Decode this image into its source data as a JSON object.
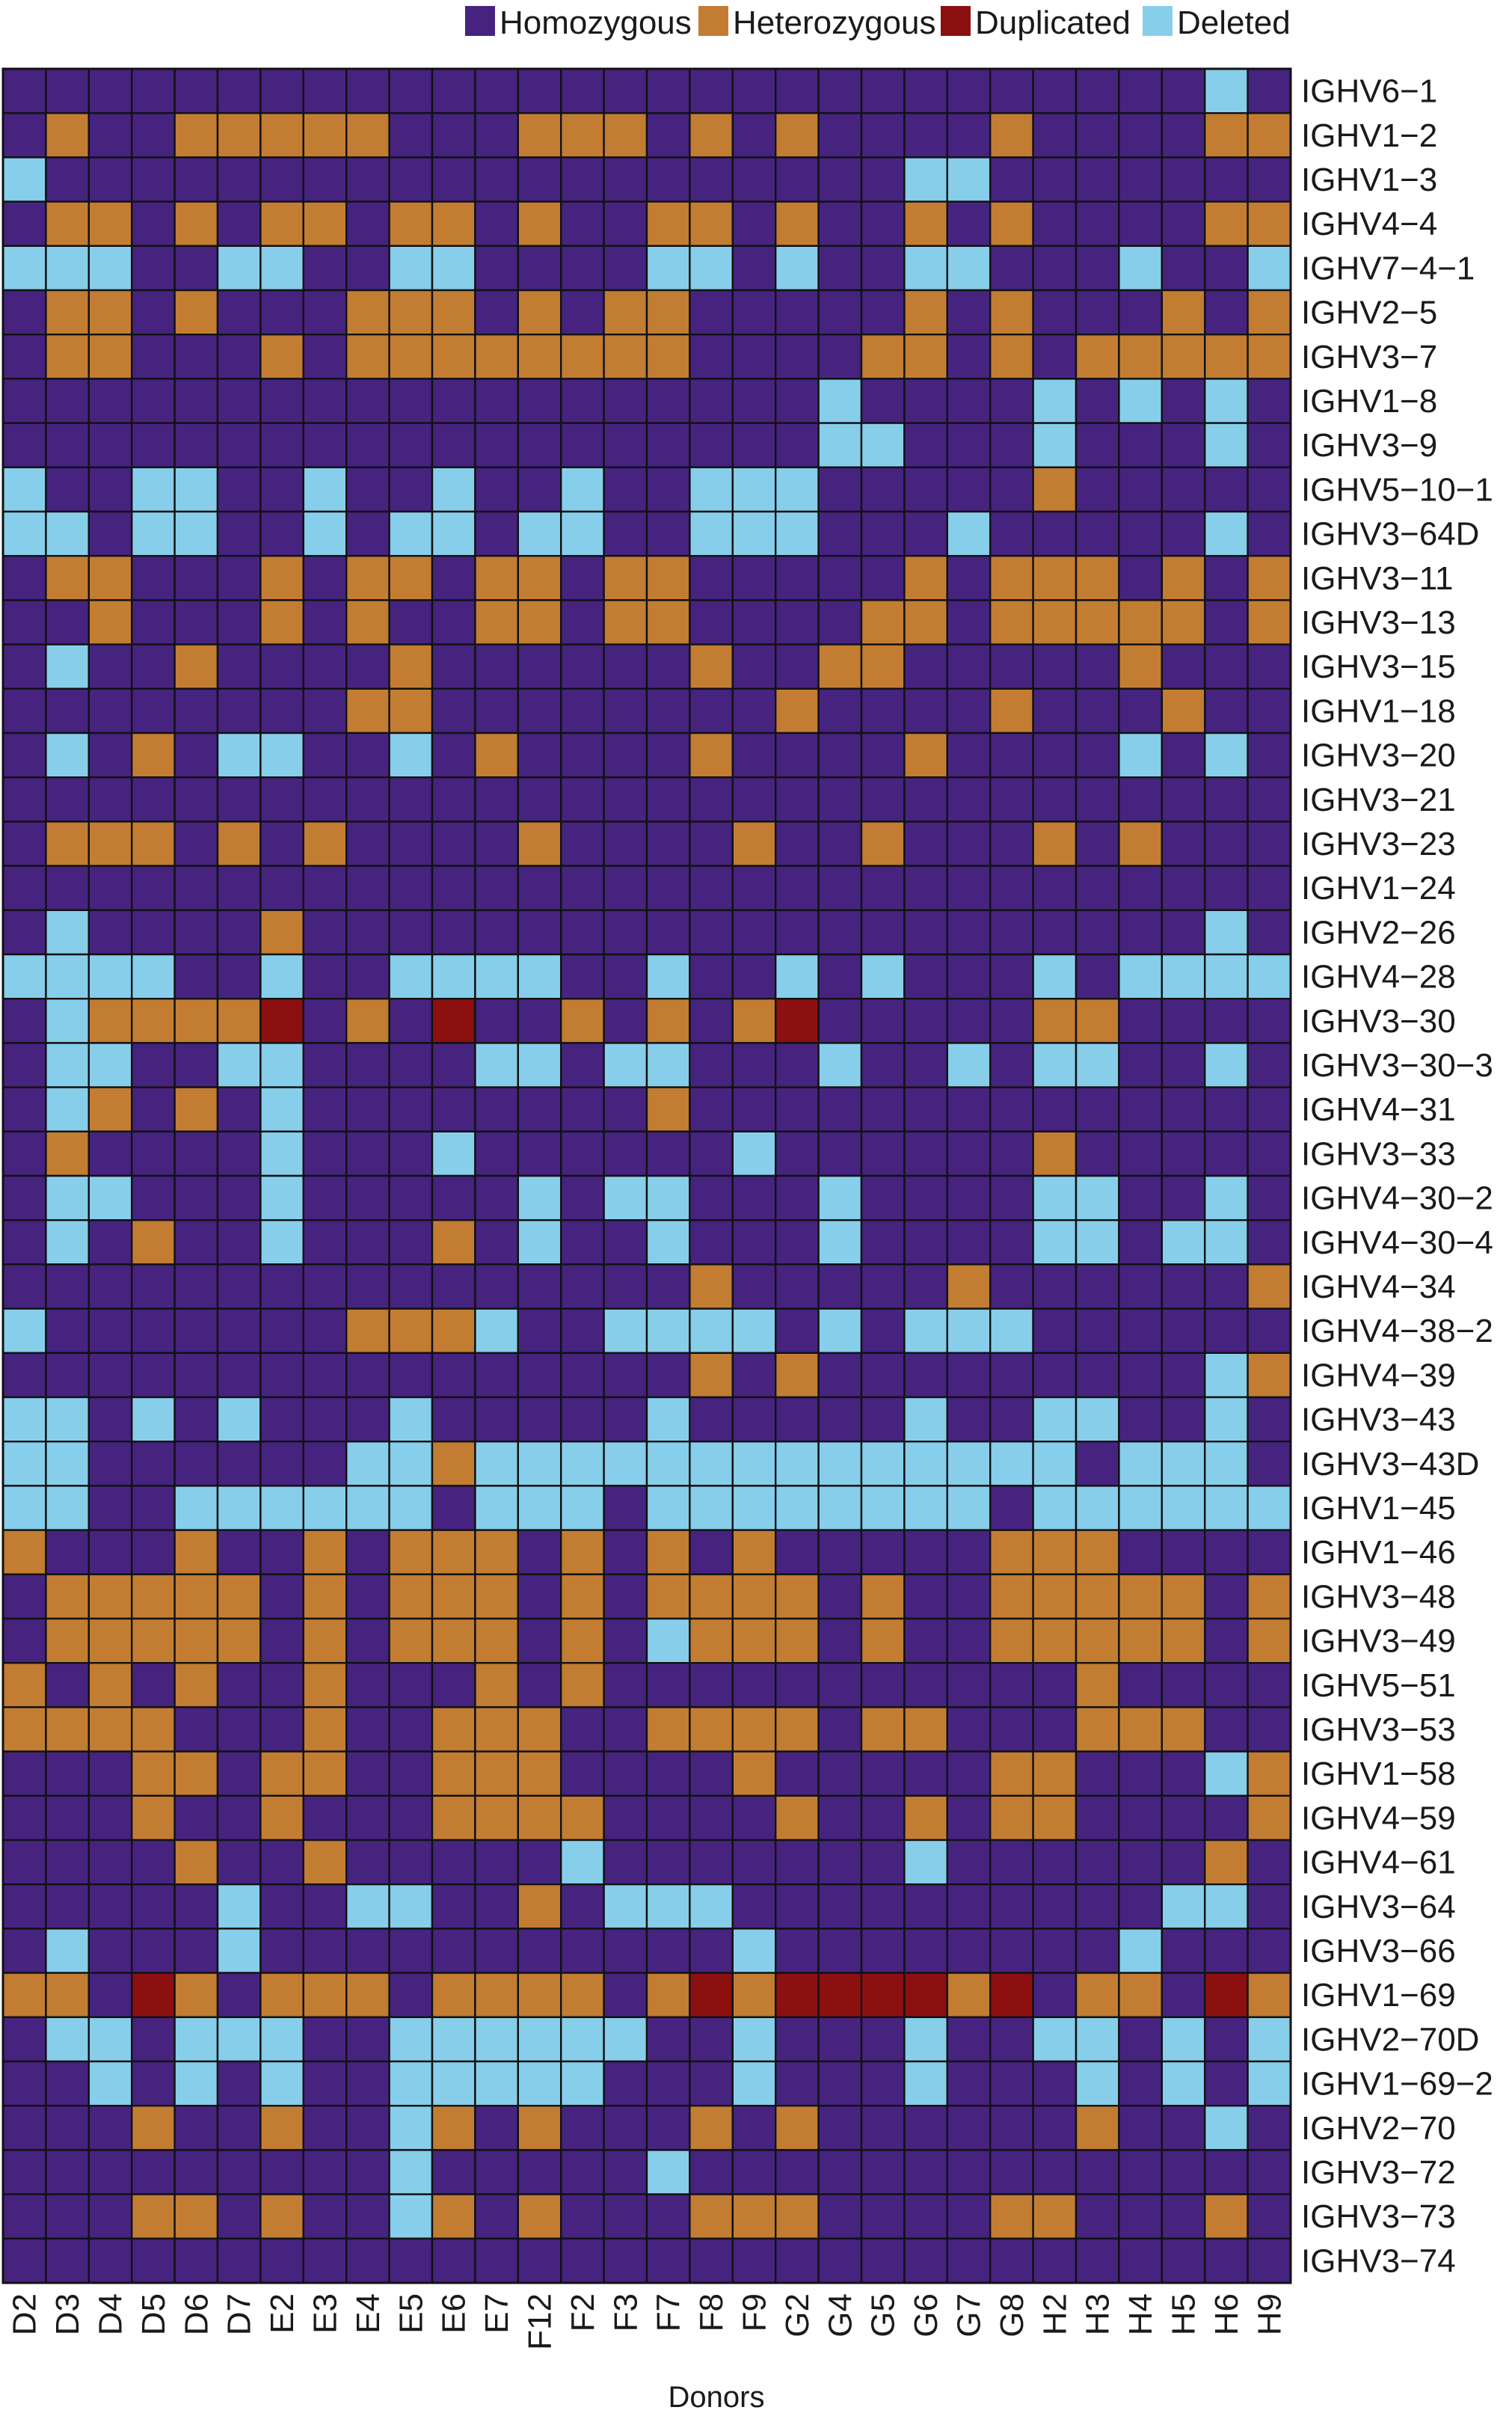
{
  "chart_data": {
    "type": "heatmap",
    "title": "",
    "xlabel": "Donors",
    "ylabel": "",
    "legend_position": "top",
    "legend": [
      {
        "code": "M",
        "label": "Homozygous",
        "color": "#46237f"
      },
      {
        "code": "O",
        "label": "Heterozygous",
        "color": "#c27d33"
      },
      {
        "code": "R",
        "label": "Duplicated",
        "color": "#8c1010"
      },
      {
        "code": "C",
        "label": "Deleted",
        "color": "#87ceeb"
      }
    ],
    "grid_color": "#111111",
    "columns": [
      "D2",
      "D3",
      "D4",
      "D5",
      "D6",
      "D7",
      "E2",
      "E3",
      "E4",
      "E5",
      "E6",
      "E7",
      "F12",
      "F2",
      "F3",
      "F7",
      "F8",
      "F9",
      "G2",
      "G4",
      "G5",
      "G6",
      "G7",
      "G8",
      "H2",
      "H3",
      "H4",
      "H5",
      "H6",
      "H9"
    ],
    "rows": [
      "IGHV6-1",
      "IGHV1-2",
      "IGHV1-3",
      "IGHV4-4",
      "IGHV7-4-1",
      "IGHV2-5",
      "IGHV3-7",
      "IGHV1-8",
      "IGHV3-9",
      "IGHV5-10-1",
      "IGHV3-64D",
      "IGHV3-11",
      "IGHV3-13",
      "IGHV3-15",
      "IGHV1-18",
      "IGHV3-20",
      "IGHV3-21",
      "IGHV3-23",
      "IGHV1-24",
      "IGHV2-26",
      "IGHV4-28",
      "IGHV3-30",
      "IGHV3-30-3",
      "IGHV4-31",
      "IGHV3-33",
      "IGHV4-30-2",
      "IGHV4-30-4",
      "IGHV4-34",
      "IGHV4-38-2",
      "IGHV4-39",
      "IGHV3-43",
      "IGHV3-43D",
      "IGHV1-45",
      "IGHV1-46",
      "IGHV3-48",
      "IGHV3-49",
      "IGHV5-51",
      "IGHV3-53",
      "IGHV1-58",
      "IGHV4-59",
      "IGHV4-61",
      "IGHV3-64",
      "IGHV3-66",
      "IGHV1-69",
      "IGHV2-70D",
      "IGHV1-69-2",
      "IGHV2-70",
      "IGHV3-72",
      "IGHV3-73",
      "IGHV3-74"
    ],
    "matrix": [
      "MMMMMMMMMMMMMMMMMMMMMMMMMMMMCM",
      "MOMMOOOOOMMMOOOMOMOMMMMOMMMMOO",
      "CMMMMMMMMMMMMMMMMMMMMCCMMMMMMM",
      "MOOMOMOOMOOMOMMOOMOMMOMOMMMMOO",
      "CCCMMCCMMCCMMMMCCMCMMCCMMMCMMC",
      "MOOMOMMMOOOMOMOOMMMMMOMOMMMOMO",
      "MOOMMMOMOOOOOOOOMMMMOOMOMOOOOO",
      "MMMMMMMMMMMMMMMMMMMCMMMMCMCMCM",
      "MMMMMMMMMMMMMMMMMMMCCMMMCMMMCM",
      "CMMCCMMCMMCMMCMMCCCMMMMMOMMMMM",
      "CCMCCMMCMCCMCCMMCCCMMMCMMMMMCM",
      "MOOMMMOMOOMOOMOOMMMMMOMOOOMOMO",
      "MMOMMMOMOMMOOMOOMMMMOOMOOOOOMO",
      "MCMMOMMMMOMMMMMMOMMOOMMMMMOMMM",
      "MMMMMMMMOOMMMMMMMMOMMMMOMMMOMM",
      "MCMOMCCMMCMOMMMMOMMMMOMMMMCMCM",
      "MMMMMMMMMMMMMMMMMMMMMMMMMMMMMM",
      "MOOOMOMOMMMMOMMMMOMMOMMMOMOMMM",
      "MMMMMMMMMMMMMMMMMMMMMMMMMMMMMM",
      "MCMMMMOMMMMMMMMMMMMMMMMMMMMMCM",
      "CCCCMMCMMCCCCMMCMMCMCMMMCMCCCC",
      "MCOOOORMOMRMMOMOMORMMMMMOOMMMM",
      "MCCMMCCMMMMCCMCCMMMCMMCMCCMMCM",
      "MCOMOMCMMMMMMMMOMMMMMMMMMMMMMM",
      "MOMMMMCMMMCMMMMMMCMMMMMMOMMMMM",
      "MCCMMMCMMMMMCMCCMMMCMMMMCCMMCM",
      "MCMOMMCMMMOMCMMCMMMCMMMMCCMCCM",
      "MMMMMMMMMMMMMMMMOMMMMMOMMMMMMO",
      "CMMMMMMMOOOCMMCCCCMCMCCCMMMMMM",
      "MMMMMMMMMMMMMMMMOMOMMMMMMMMMCO",
      "CCMCMCMMMCMMMMMCMMMMMCMMCCMMCM",
      "CCMMMMMMCCOCCCCCCCCCCCCCCMCCCM",
      "CCMMCCCCCCMCCCMCCCCCCCCMCCCCCC",
      "OMMMOMMOMOOOMOMOMOMMMMMOOOMMMM",
      "MOOOOOMOMOOOMOMOOOOMOMMOOOOOMO",
      "MOOOOOMOMOOOMOMCOOOMOMMOOOOOMO",
      "OMOMOMMOMMMOMOMMMMMMMMMMMOMMMM",
      "OOOOMMMOMMOOOMMOOOOMOOMMMOOOMM",
      "MMMOOMOOMMOOOMMMMOMMMMMOOMMMCO",
      "MMMOMMOMMMOOOOMMMMOMMOMOOMMMMO",
      "MMMMOMMOMMMMMCMMMMMMMCMMMMMMOM",
      "MMMMMCMMCCMMOMCCCMMMMMMMMMMCCM",
      "MCMMMCMMMMMMMMMMMCMMMMMMMMCMMM",
      "OOMROMOOOMOOOOMORORRRRORMOOMRO",
      "MCCMCCCMMCCCCCCMMCMMMCMMCCMCMC",
      "MMCMCMCMMCCCCCMMMCMMMCMMMCMCMC",
      "MMMOMMOMMCOMOMMMOMOMMMMMMOMMCM",
      "MMMMMMMMMCMMMMMCMMMMMMMMMMMMMM",
      "MMMOOMOMMCOMOMMMOOOMMMMOOMMMOM",
      "MMMMMMMMMMMMMMMMMMMMMMMMMMMMMM"
    ]
  }
}
